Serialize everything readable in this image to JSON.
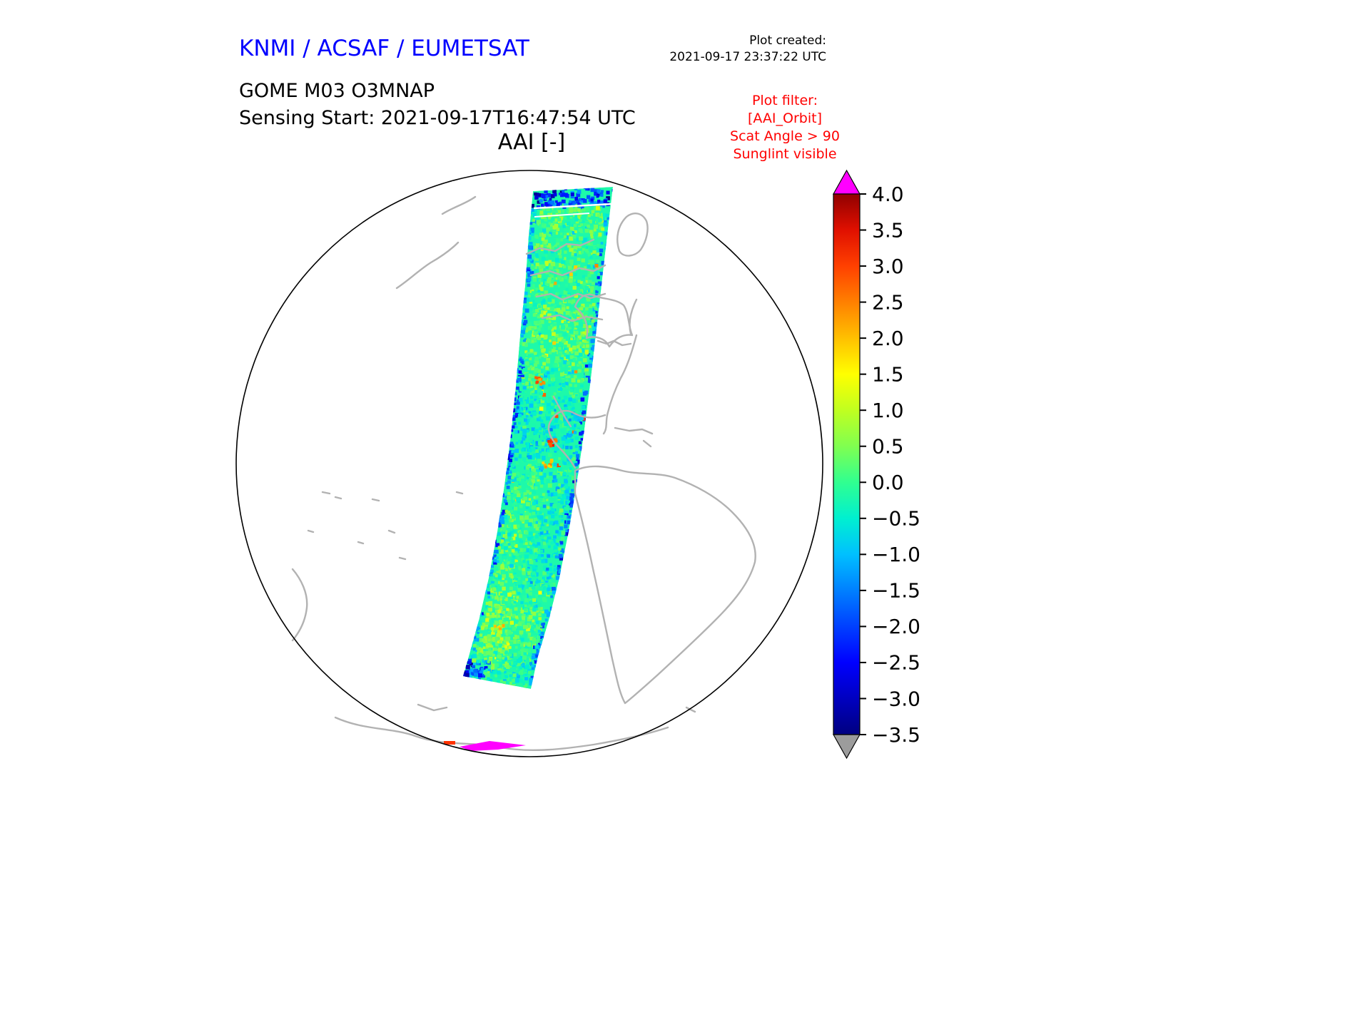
{
  "header": {
    "agency_title": "KNMI / ACSAF / EUMETSAT",
    "plot_created_label": "Plot created:",
    "plot_created_value": "2021-09-17 23:37:22 UTC",
    "instrument_line": "GOME M03 O3MNAP",
    "sensing_line": "Sensing Start: 2021-09-17T16:47:54 UTC",
    "plot_title": "AAI [-]",
    "filter_lines": [
      "Plot filter:",
      "[AAI_Orbit]",
      "Scat Angle > 90",
      "Sunglint visible"
    ]
  },
  "colors": {
    "agency_title_blue": "#0000ff",
    "filter_red": "#ff0000",
    "coastline_gray": "#b2b2b2",
    "globe_outline": "#000000",
    "background": "#ffffff"
  },
  "chart_data": {
    "type": "heatmap",
    "subtype": "satellite_orbit_swath_on_orthographic_globe",
    "title": "AAI [-]",
    "instrument": "GOME M03 O3MNAP",
    "sensing_start": "2021-09-17T16:47:54 UTC",
    "projection": "orthographic",
    "swath_description": "Single north-to-south orbit swath crossing Arctic Canada, central North America, Mexico, Central America and the eastern Pacific west of South America; values mostly between -1 and +1 (green/cyan speckle) with isolated highs (orange/red) over Mexico and Central America, strong negative (dark blue) pixels at the swath edges near the top and bottom, and an out-of-range magenta sliver near the south pole",
    "colorbar": {
      "orientation": "vertical",
      "position": "right",
      "vmin": -3.5,
      "vmax": 4.0,
      "ticks": [
        4.0,
        3.5,
        3.0,
        2.5,
        2.0,
        1.5,
        1.0,
        0.5,
        0.0,
        -0.5,
        -1.0,
        -1.5,
        -2.0,
        -2.5,
        -3.0,
        -3.5
      ],
      "tick_labels": [
        "4.0",
        "3.5",
        "3.0",
        "2.5",
        "2.0",
        "1.5",
        "1.0",
        "0.5",
        "0.0",
        "−0.5",
        "−1.0",
        "−1.5",
        "−2.0",
        "−2.5",
        "−3.0",
        "−3.5"
      ],
      "over_arrow_color": "#ff00ff",
      "under_arrow_color": "#9c9c9c",
      "colormap_stops": [
        {
          "value": -3.5,
          "color": "#000080"
        },
        {
          "value": -3.0,
          "color": "#0000c0"
        },
        {
          "value": -2.5,
          "color": "#0000ff"
        },
        {
          "value": -2.0,
          "color": "#0040ff"
        },
        {
          "value": -1.5,
          "color": "#0080ff"
        },
        {
          "value": -1.0,
          "color": "#00c0ff"
        },
        {
          "value": -0.5,
          "color": "#00f0d0"
        },
        {
          "value": 0.0,
          "color": "#30ff90"
        },
        {
          "value": 0.5,
          "color": "#80ff50"
        },
        {
          "value": 1.0,
          "color": "#c0ff20"
        },
        {
          "value": 1.5,
          "color": "#ffff00"
        },
        {
          "value": 2.0,
          "color": "#ffc000"
        },
        {
          "value": 2.5,
          "color": "#ff8000"
        },
        {
          "value": 3.0,
          "color": "#ff4000"
        },
        {
          "value": 3.5,
          "color": "#e01000"
        },
        {
          "value": 4.0,
          "color": "#900000"
        }
      ]
    }
  }
}
